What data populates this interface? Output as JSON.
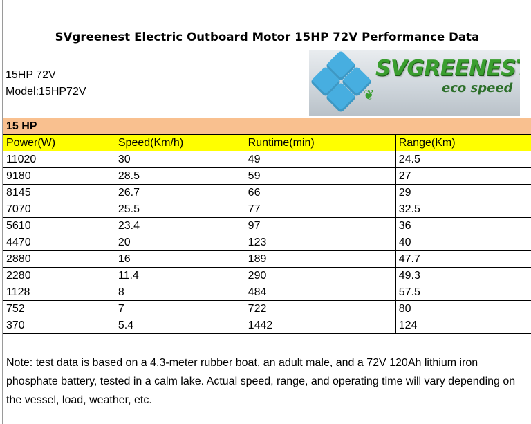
{
  "title": "SVgreenest Electric Outboard Motor 15HP 72V Performance Data",
  "info": {
    "line1": "15HP 72V",
    "line2": "Model:15HP72V"
  },
  "logo": {
    "name": "SVGREENEST",
    "slogan": "eco speed"
  },
  "table": {
    "section_label": "15 HP",
    "columns": [
      "Power(W)",
      "Speed(Km/h)",
      "Runtime(min)",
      "Range(Km)"
    ],
    "rows": [
      [
        "11020",
        "30",
        "49",
        "24.5"
      ],
      [
        "9180",
        "28.5",
        "59",
        "27"
      ],
      [
        "8145",
        "26.7",
        "66",
        "29"
      ],
      [
        "7070",
        "25.5",
        "77",
        "32.5"
      ],
      [
        "5610",
        "23.4",
        "97",
        "36"
      ],
      [
        "4470",
        "20",
        "123",
        "40"
      ],
      [
        "2880",
        "16",
        "189",
        "47.7"
      ],
      [
        "2280",
        "11.4",
        "290",
        "49.3"
      ],
      [
        "1128",
        "8",
        "484",
        "57.5"
      ],
      [
        "752",
        "7",
        "722",
        "80"
      ],
      [
        "370",
        "5.4",
        "1442",
        "124"
      ]
    ]
  },
  "note": "Note: test data is based on a 4.3-meter rubber boat, an adult male, and a 72V 120Ah lithium iron phosphate battery, tested in a calm lake. Actual speed, range, and operating time will vary depending on the vessel, load, weather, etc.",
  "colors": {
    "section_bg": "#f9c08f",
    "header_bg": "#ffff00",
    "logo_green": "#3a9e2f",
    "tile_blue": "#47aee0"
  },
  "icons": [
    "blue-diamond-tiles-icon",
    "green-leaf-icon"
  ]
}
